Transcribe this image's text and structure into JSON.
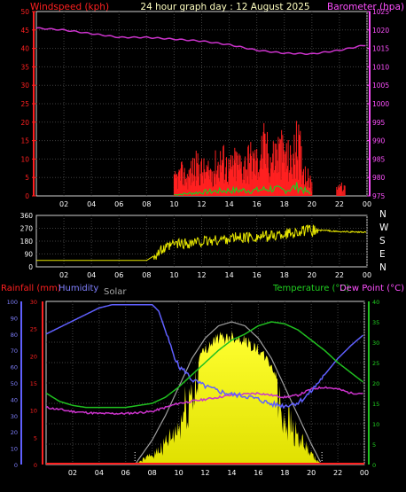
{
  "chart_data": [
    {
      "type": "line",
      "title": "24 hour graph day : 12 August 2025",
      "left_axis_label": "Windspeed (kph)",
      "right_axis_label": "Barometer (hpa)",
      "left_ylim": [
        0,
        50
      ],
      "right_ylim": [
        975,
        1025
      ],
      "left_ticks": [
        "0",
        "5",
        "10",
        "15",
        "20",
        "25",
        "30",
        "35",
        "40",
        "45",
        "50"
      ],
      "right_ticks": [
        "975",
        "980",
        "985",
        "990",
        "995",
        "1000",
        "1005",
        "1010",
        "1015",
        "1020",
        "1025"
      ],
      "x_ticks": [
        "02",
        "04",
        "06",
        "08",
        "10",
        "12",
        "14",
        "16",
        "18",
        "20",
        "22",
        "00"
      ],
      "series": [
        {
          "name": "Barometer",
          "color": "#cc33cc",
          "x": [
            0,
            2,
            4,
            6,
            8,
            10,
            12,
            14,
            16,
            18,
            20,
            22,
            24
          ],
          "values": [
            1020.5,
            1020,
            1019,
            1018,
            1018,
            1017.5,
            1017,
            1016,
            1014.5,
            1013.7,
            1013.5,
            1014.5,
            1016
          ]
        },
        {
          "name": "Windspeed",
          "color": "#ff2020",
          "style": "bars",
          "x": [
            10,
            10.5,
            11,
            11.5,
            12,
            12.5,
            13,
            13.5,
            14,
            14.5,
            15,
            15.5,
            16,
            16.5,
            17,
            17.5,
            18,
            18.5,
            19,
            19.5,
            20,
            22,
            22.3
          ],
          "values": [
            4,
            6,
            5,
            8,
            7,
            6,
            8,
            10,
            7,
            9,
            8,
            10,
            9,
            13,
            10,
            12,
            11,
            9,
            14,
            6,
            3,
            3,
            2
          ]
        },
        {
          "name": "Gust",
          "color": "#20cc20",
          "x": [
            10,
            12,
            14,
            16,
            17,
            18,
            19,
            20
          ],
          "values": [
            0.3,
            1,
            1.5,
            1.5,
            2,
            1.5,
            2.5,
            0.3
          ]
        }
      ]
    },
    {
      "type": "line",
      "left_ticks": [
        "0",
        "90",
        "180",
        "270",
        "360"
      ],
      "right_labels": [
        "N",
        "W",
        "S",
        "E",
        "N"
      ],
      "x_ticks": [
        "02",
        "04",
        "06",
        "08",
        "10",
        "12",
        "14",
        "16",
        "18",
        "20",
        "22",
        "00"
      ],
      "ylim": [
        0,
        360
      ],
      "series": [
        {
          "name": "Wind direction",
          "color": "#e8e800",
          "x": [
            0,
            1,
            2,
            3,
            4,
            5,
            6,
            7,
            8,
            8.5,
            9,
            9.5,
            10,
            11,
            12,
            13,
            14,
            15,
            16,
            17,
            18,
            19,
            20,
            21,
            22,
            23,
            24
          ],
          "values": [
            45,
            45,
            45,
            45,
            45,
            45,
            45,
            45,
            45,
            75,
            110,
            130,
            160,
            165,
            175,
            185,
            200,
            205,
            210,
            215,
            230,
            245,
            255,
            255,
            245,
            245,
            240
          ]
        }
      ]
    },
    {
      "type": "line",
      "title": "Solar",
      "labels": [
        "Rainfall (mm)",
        "Humidity",
        "Solar",
        "Temperature (°C)",
        "Dew Point (°C)"
      ],
      "left_ticks_humidity": [
        "0",
        "10",
        "20",
        "30",
        "40",
        "50",
        "60",
        "70",
        "80",
        "90",
        "100"
      ],
      "left_ticks_rain": [
        "0",
        "5",
        "10",
        "15",
        "20",
        "25",
        "30"
      ],
      "right_ticks_temp": [
        "0",
        "5",
        "10",
        "15",
        "20",
        "25",
        "30",
        "35",
        "40"
      ],
      "x_ticks": [
        "02",
        "04",
        "06",
        "08",
        "10",
        "12",
        "14",
        "16",
        "18",
        "20",
        "22",
        "00"
      ],
      "humidity_ylim": [
        0,
        100
      ],
      "temp_ylim": [
        0,
        40
      ],
      "series": [
        {
          "name": "Humidity",
          "color": "#6060ff",
          "x": [
            0,
            1,
            2,
            3,
            4,
            5,
            6,
            7,
            8,
            8.5,
            9,
            9.5,
            10,
            10.5,
            11,
            12,
            13,
            14,
            15,
            16,
            17,
            18,
            19,
            19.5,
            20,
            20.5,
            21,
            22,
            23,
            24
          ],
          "values": [
            80,
            84,
            88,
            92,
            96,
            98,
            98,
            98,
            98,
            94,
            82,
            70,
            60,
            57,
            52,
            48,
            45,
            43,
            42,
            40,
            37,
            36,
            38,
            41,
            45,
            50,
            55,
            65,
            73,
            80
          ]
        },
        {
          "name": "Temperature",
          "color": "#20c020",
          "x": [
            0,
            1,
            2,
            3,
            4,
            5,
            6,
            7,
            8,
            9,
            10,
            11,
            12,
            13,
            14,
            15,
            16,
            17,
            18,
            19,
            20,
            21,
            22,
            23,
            24
          ],
          "values": [
            17.5,
            15.5,
            14.5,
            14,
            14,
            14,
            14,
            14.5,
            15,
            16.5,
            19,
            22,
            25,
            28,
            30.5,
            32,
            34,
            35,
            34.5,
            33,
            30.5,
            28,
            25,
            22.5,
            20
          ]
        },
        {
          "name": "Dew Point",
          "color": "#cc33cc",
          "x": [
            0,
            2,
            4,
            6,
            8,
            10,
            12,
            14,
            16,
            18,
            19,
            20,
            21,
            22,
            23,
            24
          ],
          "values": [
            14,
            13,
            12.5,
            12.5,
            13,
            15,
            16,
            17,
            17.5,
            16.5,
            17,
            18.5,
            19,
            18.5,
            17.5,
            17.5
          ]
        },
        {
          "name": "Solar theoretical",
          "color": "#a0a0a0",
          "x": [
            6.7,
            8,
            9,
            10,
            11,
            12,
            13,
            14,
            15,
            16,
            17,
            18,
            19,
            20,
            20.8
          ],
          "values": [
            0,
            6,
            12,
            19,
            26,
            31,
            34,
            35,
            34,
            31,
            26,
            19,
            12,
            5,
            0
          ]
        },
        {
          "name": "Solar",
          "color": "#ffff20",
          "style": "area",
          "x": [
            6.7,
            7.5,
            8,
            8.5,
            9,
            9.5,
            10,
            10.5,
            11,
            11.5,
            12,
            12.5,
            13,
            13.5,
            14,
            14.5,
            15,
            15.5,
            16,
            16.5,
            17,
            17.5,
            18,
            18.5,
            19,
            19.5,
            20,
            20.8
          ],
          "values": [
            0,
            2,
            3,
            5,
            7,
            9,
            12,
            18,
            24,
            27,
            29,
            31,
            32,
            32,
            32.5,
            32,
            31.5,
            30,
            29,
            27,
            25,
            21,
            17,
            13,
            9,
            6,
            3,
            0
          ]
        }
      ]
    }
  ]
}
